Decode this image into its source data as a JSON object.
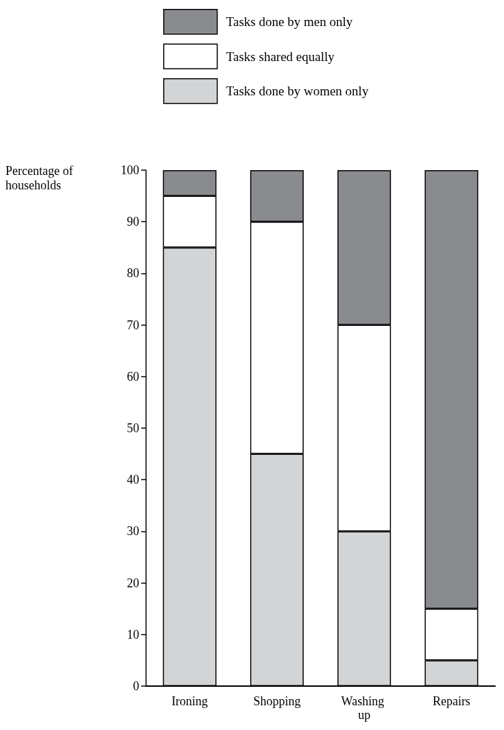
{
  "chart_data": {
    "type": "bar",
    "stacked": true,
    "ylabel": "Percentage of households",
    "categories": [
      "Ironing",
      "Shopping",
      "Washing up",
      "Repairs"
    ],
    "series": [
      {
        "name": "Tasks done by women only",
        "color": "#d3d4d6",
        "values": [
          85,
          45,
          30,
          5
        ]
      },
      {
        "name": "Tasks shared equally",
        "color": "#ffffff",
        "values": [
          10,
          45,
          40,
          10
        ]
      },
      {
        "name": "Tasks done by men only",
        "color": "#8a8b8f",
        "values": [
          5,
          10,
          30,
          85
        ]
      }
    ],
    "ylim": [
      0,
      100
    ],
    "yticks": [
      0,
      10,
      20,
      30,
      40,
      50,
      60,
      70,
      80,
      90,
      100
    ],
    "grid": false,
    "legend": "top"
  }
}
